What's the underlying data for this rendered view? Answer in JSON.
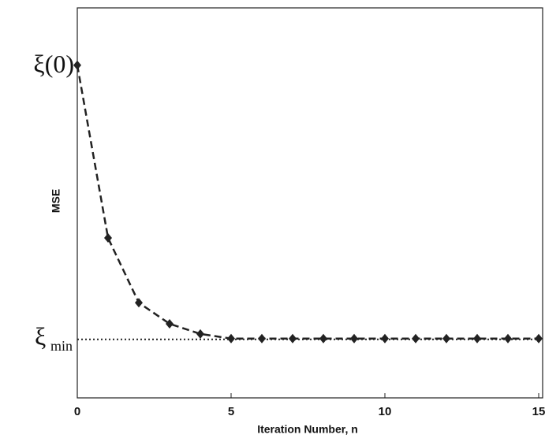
{
  "chart_data": {
    "type": "line",
    "xlabel": "Iteration Number, n",
    "ylabel": "MSE",
    "x": [
      0,
      1,
      2,
      3,
      4,
      5,
      6,
      7,
      8,
      9,
      10,
      11,
      12,
      13,
      14,
      15
    ],
    "series": [
      {
        "color": "#222222",
        "values": [
          0.853,
          0.41,
          0.244,
          0.19,
          0.164,
          0.152,
          0.152,
          0.152,
          0.152,
          0.152,
          0.152,
          0.152,
          0.152,
          0.152,
          0.152,
          0.152
        ]
      }
    ],
    "xlim": [
      0,
      15
    ],
    "xticks": [
      0,
      5,
      10,
      15
    ],
    "ylim": [
      0,
      1
    ],
    "annotations": [
      {
        "text": "ξ(0)",
        "value": 0.853
      },
      {
        "text": "ξ",
        "subscript": "min",
        "value": 0.15
      }
    ]
  }
}
